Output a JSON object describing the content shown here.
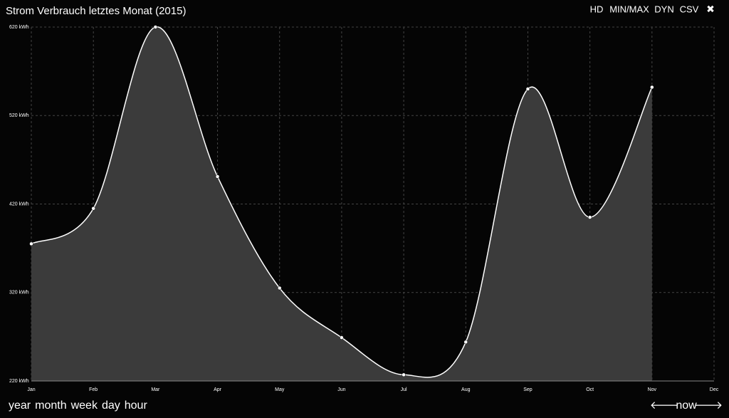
{
  "chart_data": {
    "type": "area",
    "title": "Strom Verbrauch letztes Monat (2015)",
    "categories": [
      "Jan",
      "Feb",
      "Mar",
      "Apr",
      "May",
      "Jun",
      "Jul",
      "Aug",
      "Sep",
      "Oct",
      "Nov",
      "Dec"
    ],
    "values": [
      375,
      415,
      620,
      451,
      325,
      269,
      227,
      264,
      550,
      405,
      552,
      null
    ],
    "color": "#3b3b3b",
    "line_color": "#ffffff",
    "ylim": [
      220,
      620
    ],
    "yticks": [
      {
        "value": 220,
        "label": "220 kWh"
      },
      {
        "value": 320,
        "label": "320 kWh"
      },
      {
        "value": 420,
        "label": "420 kWh"
      },
      {
        "value": 520,
        "label": "520 kWh"
      },
      {
        "value": 620,
        "label": "620 kWh"
      }
    ],
    "grid": true
  },
  "toolbar": {
    "buttons": [
      "HD",
      "MIN/MAX",
      "DYN",
      "CSV"
    ],
    "close": "✖"
  },
  "footer": {
    "ranges": [
      "year",
      "month",
      "week",
      "day",
      "hour"
    ],
    "prev": "🡐",
    "now": "now",
    "next": "🡒"
  }
}
